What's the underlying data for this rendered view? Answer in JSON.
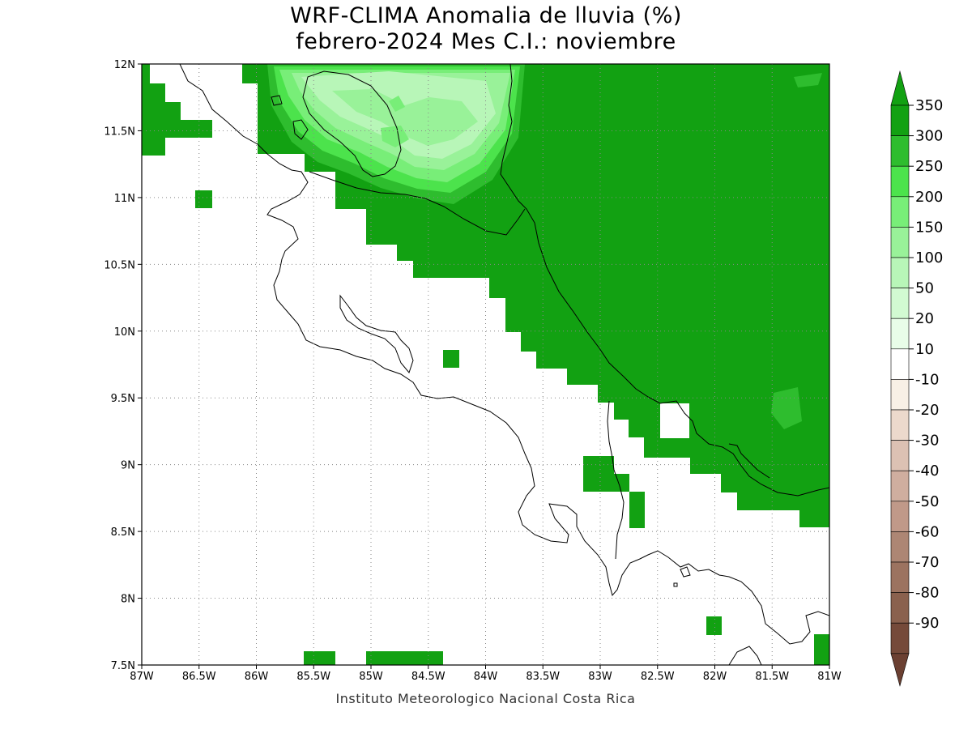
{
  "title_line1": "WRF-CLIMA Anomalia de lluvia (%)",
  "title_line2": "febrero-2024 Mes C.I.: noviembre",
  "footer": "Instituto Meteorologico Nacional Costa Rica",
  "axes": {
    "lon_min": -87,
    "lon_max": -81,
    "lat_min": 7.5,
    "lat_max": 12,
    "x_ticks": [
      {
        "v": -87,
        "label": "87W"
      },
      {
        "v": -86.5,
        "label": "86.5W"
      },
      {
        "v": -86,
        "label": "86W"
      },
      {
        "v": -85.5,
        "label": "85.5W"
      },
      {
        "v": -85,
        "label": "85W"
      },
      {
        "v": -84.5,
        "label": "84.5W"
      },
      {
        "v": -84,
        "label": "84W"
      },
      {
        "v": -83.5,
        "label": "83.5W"
      },
      {
        "v": -83,
        "label": "83W"
      },
      {
        "v": -82.5,
        "label": "82.5W"
      },
      {
        "v": -82,
        "label": "82W"
      },
      {
        "v": -81.5,
        "label": "81.5W"
      },
      {
        "v": -81,
        "label": "81W"
      }
    ],
    "y_ticks": [
      {
        "v": 12,
        "label": "12N"
      },
      {
        "v": 11.5,
        "label": "11.5N"
      },
      {
        "v": 11,
        "label": "11N"
      },
      {
        "v": 10.5,
        "label": "10.5N"
      },
      {
        "v": 10,
        "label": "10N"
      },
      {
        "v": 9.5,
        "label": "9.5N"
      },
      {
        "v": 9,
        "label": "9N"
      },
      {
        "v": 8.5,
        "label": "8.5N"
      },
      {
        "v": 8,
        "label": "8N"
      },
      {
        "v": 7.5,
        "label": "7.5N"
      }
    ],
    "grid": true
  },
  "colorbar": {
    "levels": [
      "350",
      "300",
      "250",
      "200",
      "150",
      "100",
      "50",
      "20",
      "10",
      "-10",
      "-20",
      "-30",
      "-40",
      "-50",
      "-60",
      "-70",
      "-80",
      "-90"
    ],
    "colors": [
      "#12a112",
      "#2ebd2e",
      "#4ce34c",
      "#78ee78",
      "#99f299",
      "#b8f6b8",
      "#d2fad2",
      "#e8fde8",
      "#ffffff",
      "#f8f0e6",
      "#ecd9cc",
      "#dcc1b3",
      "#cfae9f",
      "#c09989",
      "#ad8674",
      "#9c7360",
      "#8a614e",
      "#754a3a"
    ],
    "top_color": "#12a112",
    "bottom_color": "#6b4032"
  },
  "anomaly_regions": {
    "ne_block_color": "#12a112",
    "gulf_blob_colors": [
      "#2ebd2e",
      "#4ce34c",
      "#78ee78",
      "#99f299",
      "#b8f6b8"
    ]
  }
}
